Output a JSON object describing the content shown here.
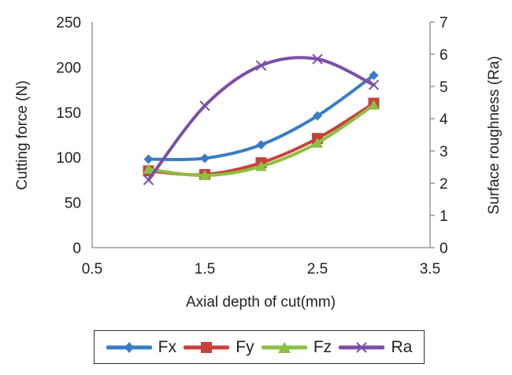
{
  "chart_data": {
    "type": "line",
    "title": "",
    "xlabel": "Axial depth of cut(mm)",
    "ylabel": "Cutting force (N)",
    "y2label": "Surface roughness (Ra)",
    "xlim": [
      0.5,
      3.5
    ],
    "ylim": [
      0,
      250
    ],
    "y2lim": [
      0,
      7
    ],
    "x_ticks": [
      "0.5",
      "1.5",
      "2.5",
      "3.5"
    ],
    "y_ticks": [
      "0",
      "50",
      "100",
      "150",
      "200",
      "250"
    ],
    "y2_ticks": [
      "0",
      "1",
      "2",
      "3",
      "4",
      "5",
      "6",
      "7"
    ],
    "grid": false,
    "legend_position": "bottom",
    "x": [
      1.0,
      1.5,
      2.0,
      2.5,
      3.0
    ],
    "series": [
      {
        "name": "Fx",
        "axis": "left",
        "marker": "diamond",
        "color": "#3a7cc3",
        "values": [
          98,
          99,
          114,
          146,
          191
        ]
      },
      {
        "name": "Fy",
        "axis": "left",
        "marker": "square",
        "color": "#c9403a",
        "values": [
          85,
          81,
          94,
          121,
          160
        ]
      },
      {
        "name": "Fz",
        "axis": "left",
        "marker": "triangle",
        "color": "#8cc042",
        "values": [
          87,
          80,
          90,
          116,
          158
        ]
      },
      {
        "name": "Ra",
        "axis": "right",
        "marker": "x",
        "color": "#7b4fa8",
        "values": [
          2.1,
          4.4,
          5.65,
          5.85,
          5.05
        ]
      }
    ]
  },
  "legend": {
    "items": [
      {
        "label": "Fx"
      },
      {
        "label": "Fy"
      },
      {
        "label": "Fz"
      },
      {
        "label": "Ra"
      }
    ]
  }
}
